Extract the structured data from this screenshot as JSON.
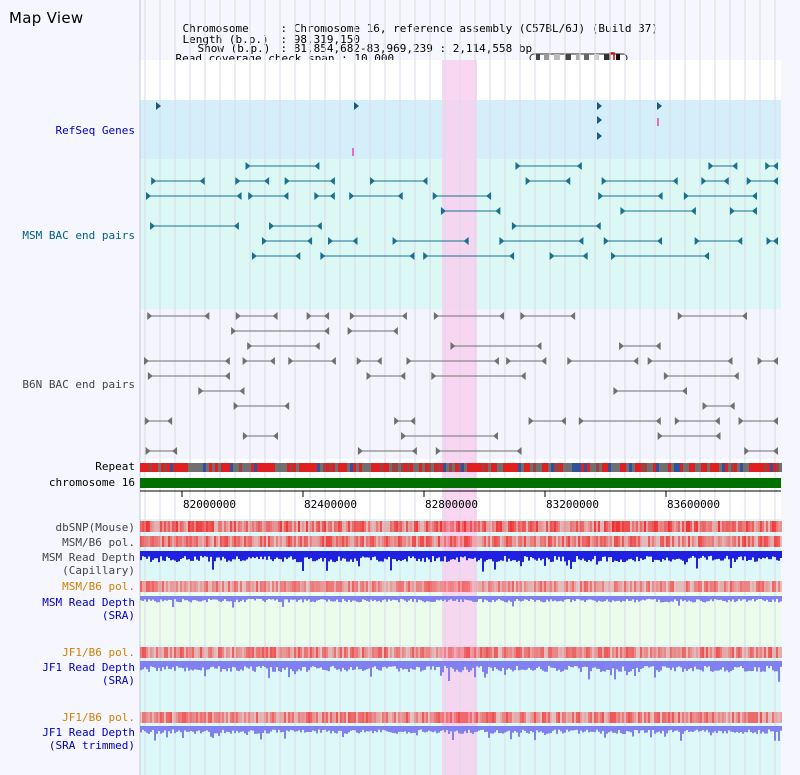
{
  "page": {
    "title": "Map View"
  },
  "info": {
    "chromosome_label": "Chromosome",
    "chromosome_value": "Chromosome 16, reference assembly (C57BL/6J) (Build 37)",
    "length_label": "Length (b.p.)",
    "length_value": "98,319,150",
    "show_label": "Show (b.p.)",
    "show_value": "81,854,682-83,969,239 : 2,114,558 bp",
    "coverage_label": "Read coverage check span",
    "coverage_value": "10,000"
  },
  "tracks": {
    "refseq": "RefSeq Genes",
    "msm_bac": "MSM BAC end pairs",
    "b6n_bac": "B6N BAC end pairs",
    "repeat": "Repeat",
    "chromosome": "chromosome 16",
    "dbsnp": "dbSNP(Mouse)",
    "msm_b6_pol_1": "MSM/B6 pol.",
    "msm_depth_cap_1": "MSM Read Depth",
    "msm_depth_cap_2": "(Capillary)",
    "msm_b6_pol_2": "MSM/B6 pol.",
    "msm_depth_sra_1": "MSM Read Depth",
    "msm_depth_sra_2": "(SRA)",
    "jf1_b6_pol_1": "JF1/B6 pol.",
    "jf1_depth_sra_1": "JF1 Read Depth",
    "jf1_depth_sra_2": "(SRA)",
    "jf1_b6_pol_2": "JF1/B6 pol.",
    "jf1_depth_trim_1": "JF1 Read Depth",
    "jf1_depth_trim_2": "(SRA trimmed)"
  },
  "axis": {
    "ticks": [
      "82000000",
      "82400000",
      "82800000",
      "83200000",
      "83600000"
    ]
  },
  "colors": {
    "refseq_bg": "#d4eefa",
    "msm_bac_bg": "#dcf8f4",
    "b6n_bac_bg": "#f4f4fc",
    "highlight": "#f8d0f0",
    "chromosome": "#007000",
    "msm_bac_line": "#1a7090",
    "b6n_bac_line": "#707070",
    "depth_capillary": "#2020e0",
    "depth_sra": "#8080f0",
    "depth_sra_strong": "#4040f0",
    "snp": "#f03030"
  }
}
